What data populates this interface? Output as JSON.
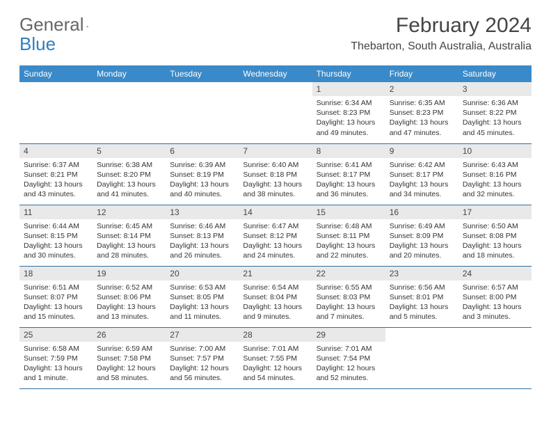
{
  "logo": {
    "part1": "General",
    "part2": "Blue"
  },
  "title": "February 2024",
  "location": "Thebarton, South Australia, Australia",
  "colors": {
    "header_bg": "#3a8ac9",
    "header_text": "#ffffff",
    "daynum_bg": "#e9e9e9",
    "border": "#2f6ca5",
    "logo_blue": "#2f7fbf"
  },
  "weekdays": [
    "Sunday",
    "Monday",
    "Tuesday",
    "Wednesday",
    "Thursday",
    "Friday",
    "Saturday"
  ],
  "weeks": [
    [
      null,
      null,
      null,
      null,
      {
        "n": "1",
        "sunrise": "6:34 AM",
        "sunset": "8:23 PM",
        "daylight": "13 hours and 49 minutes."
      },
      {
        "n": "2",
        "sunrise": "6:35 AM",
        "sunset": "8:23 PM",
        "daylight": "13 hours and 47 minutes."
      },
      {
        "n": "3",
        "sunrise": "6:36 AM",
        "sunset": "8:22 PM",
        "daylight": "13 hours and 45 minutes."
      }
    ],
    [
      {
        "n": "4",
        "sunrise": "6:37 AM",
        "sunset": "8:21 PM",
        "daylight": "13 hours and 43 minutes."
      },
      {
        "n": "5",
        "sunrise": "6:38 AM",
        "sunset": "8:20 PM",
        "daylight": "13 hours and 41 minutes."
      },
      {
        "n": "6",
        "sunrise": "6:39 AM",
        "sunset": "8:19 PM",
        "daylight": "13 hours and 40 minutes."
      },
      {
        "n": "7",
        "sunrise": "6:40 AM",
        "sunset": "8:18 PM",
        "daylight": "13 hours and 38 minutes."
      },
      {
        "n": "8",
        "sunrise": "6:41 AM",
        "sunset": "8:17 PM",
        "daylight": "13 hours and 36 minutes."
      },
      {
        "n": "9",
        "sunrise": "6:42 AM",
        "sunset": "8:17 PM",
        "daylight": "13 hours and 34 minutes."
      },
      {
        "n": "10",
        "sunrise": "6:43 AM",
        "sunset": "8:16 PM",
        "daylight": "13 hours and 32 minutes."
      }
    ],
    [
      {
        "n": "11",
        "sunrise": "6:44 AM",
        "sunset": "8:15 PM",
        "daylight": "13 hours and 30 minutes."
      },
      {
        "n": "12",
        "sunrise": "6:45 AM",
        "sunset": "8:14 PM",
        "daylight": "13 hours and 28 minutes."
      },
      {
        "n": "13",
        "sunrise": "6:46 AM",
        "sunset": "8:13 PM",
        "daylight": "13 hours and 26 minutes."
      },
      {
        "n": "14",
        "sunrise": "6:47 AM",
        "sunset": "8:12 PM",
        "daylight": "13 hours and 24 minutes."
      },
      {
        "n": "15",
        "sunrise": "6:48 AM",
        "sunset": "8:11 PM",
        "daylight": "13 hours and 22 minutes."
      },
      {
        "n": "16",
        "sunrise": "6:49 AM",
        "sunset": "8:09 PM",
        "daylight": "13 hours and 20 minutes."
      },
      {
        "n": "17",
        "sunrise": "6:50 AM",
        "sunset": "8:08 PM",
        "daylight": "13 hours and 18 minutes."
      }
    ],
    [
      {
        "n": "18",
        "sunrise": "6:51 AM",
        "sunset": "8:07 PM",
        "daylight": "13 hours and 15 minutes."
      },
      {
        "n": "19",
        "sunrise": "6:52 AM",
        "sunset": "8:06 PM",
        "daylight": "13 hours and 13 minutes."
      },
      {
        "n": "20",
        "sunrise": "6:53 AM",
        "sunset": "8:05 PM",
        "daylight": "13 hours and 11 minutes."
      },
      {
        "n": "21",
        "sunrise": "6:54 AM",
        "sunset": "8:04 PM",
        "daylight": "13 hours and 9 minutes."
      },
      {
        "n": "22",
        "sunrise": "6:55 AM",
        "sunset": "8:03 PM",
        "daylight": "13 hours and 7 minutes."
      },
      {
        "n": "23",
        "sunrise": "6:56 AM",
        "sunset": "8:01 PM",
        "daylight": "13 hours and 5 minutes."
      },
      {
        "n": "24",
        "sunrise": "6:57 AM",
        "sunset": "8:00 PM",
        "daylight": "13 hours and 3 minutes."
      }
    ],
    [
      {
        "n": "25",
        "sunrise": "6:58 AM",
        "sunset": "7:59 PM",
        "daylight": "13 hours and 1 minute."
      },
      {
        "n": "26",
        "sunrise": "6:59 AM",
        "sunset": "7:58 PM",
        "daylight": "12 hours and 58 minutes."
      },
      {
        "n": "27",
        "sunrise": "7:00 AM",
        "sunset": "7:57 PM",
        "daylight": "12 hours and 56 minutes."
      },
      {
        "n": "28",
        "sunrise": "7:01 AM",
        "sunset": "7:55 PM",
        "daylight": "12 hours and 54 minutes."
      },
      {
        "n": "29",
        "sunrise": "7:01 AM",
        "sunset": "7:54 PM",
        "daylight": "12 hours and 52 minutes."
      },
      null,
      null
    ]
  ],
  "labels": {
    "sunrise": "Sunrise:",
    "sunset": "Sunset:",
    "daylight": "Daylight:"
  }
}
